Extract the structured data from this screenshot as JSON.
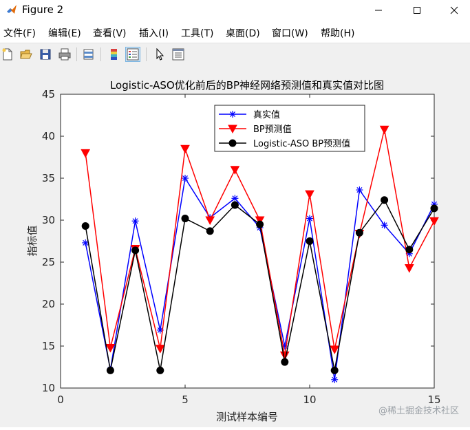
{
  "window": {
    "title": "Figure 2"
  },
  "menu": [
    "文件(F)",
    "编辑(E)",
    "查看(V)",
    "插入(I)",
    "工具(T)",
    "桌面(D)",
    "窗口(W)",
    "帮助(H)"
  ],
  "toolbar": {
    "icons": [
      "new-figure-icon",
      "open-file-icon",
      "save-icon",
      "print-icon",
      "link-plot-icon",
      "colorbar-icon",
      "legend-icon",
      "edit-plot-arrow-icon",
      "property-inspector-icon"
    ],
    "active": "legend-icon"
  },
  "watermark": "@稀土掘金技术社区",
  "colors": {
    "actual": "#0000ff",
    "bp": "#ff0000",
    "aso": "#000000"
  },
  "chart_data": {
    "type": "line",
    "title": "Logistic-ASO优化前后的BP神经网络预测值和真实值对比图",
    "xlabel": "测试样本编号",
    "ylabel": "指标值",
    "xlim": [
      0,
      15
    ],
    "ylim": [
      10,
      45
    ],
    "xticks": [
      0,
      5,
      10,
      15
    ],
    "yticks": [
      10,
      15,
      20,
      25,
      30,
      35,
      40,
      45
    ],
    "grid": false,
    "legend_position": "top-right",
    "x": [
      1,
      2,
      3,
      4,
      5,
      6,
      7,
      8,
      9,
      10,
      11,
      12,
      13,
      14,
      15
    ],
    "series": [
      {
        "name": "真实值",
        "marker": "star",
        "values": [
          27.3,
          12.2,
          29.9,
          16.9,
          35.0,
          30.3,
          32.6,
          29.1,
          15.0,
          30.2,
          11.0,
          33.6,
          29.4,
          26.0,
          31.9
        ]
      },
      {
        "name": "BP预测值",
        "marker": "triangle-down",
        "values": [
          38.0,
          14.8,
          26.6,
          14.7,
          38.5,
          30.0,
          36.0,
          30.0,
          13.9,
          33.1,
          14.6,
          28.4,
          40.8,
          24.3,
          29.9
        ]
      },
      {
        "name": "Logistic-ASO BP预测值",
        "marker": "circle",
        "values": [
          29.3,
          12.1,
          26.4,
          12.1,
          30.2,
          28.7,
          31.8,
          29.5,
          13.1,
          27.5,
          12.1,
          28.5,
          32.4,
          26.5,
          31.4
        ]
      }
    ]
  }
}
